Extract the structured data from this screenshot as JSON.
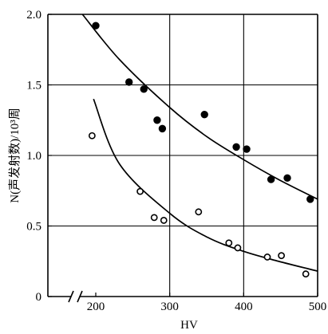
{
  "chart_data": {
    "type": "scatter",
    "title": "",
    "xlabel": "HV",
    "ylabel": "N(声发射数)/10³周",
    "xlim": [
      135,
      500
    ],
    "ylim": [
      0,
      2.0
    ],
    "axis_break": "x",
    "grid": true,
    "grid_x": [
      300,
      400
    ],
    "grid_y": [
      0.5,
      1.0,
      1.5
    ],
    "x_ticks": [
      {
        "value": 200,
        "label": "200"
      },
      {
        "value": 300,
        "label": "300"
      },
      {
        "value": 400,
        "label": "400"
      },
      {
        "value": 500,
        "label": "500"
      }
    ],
    "y_ticks": [
      {
        "value": 0,
        "label": "0"
      },
      {
        "value": 0.5,
        "label": "0.5"
      },
      {
        "value": 1.0,
        "label": "1.0"
      },
      {
        "value": 1.5,
        "label": "1.5"
      },
      {
        "value": 2.0,
        "label": "2.0"
      }
    ],
    "series": [
      {
        "marker": "filled-circle",
        "color": "#000000",
        "x": [
          200,
          245,
          265,
          283,
          290,
          347,
          390,
          404,
          437,
          459,
          490
        ],
        "y": [
          1.92,
          1.52,
          1.47,
          1.25,
          1.19,
          1.29,
          1.06,
          1.045,
          0.83,
          0.84,
          0.69
        ],
        "fit": {
          "x": [
            182,
            232,
            300,
            351,
            400,
            447,
            500
          ],
          "y": [
            2.0,
            1.68,
            1.34,
            1.13,
            0.97,
            0.83,
            0.69
          ]
        }
      },
      {
        "marker": "hollow-circle",
        "color": "#000000",
        "x": [
          195,
          260,
          279,
          292,
          339,
          380,
          392,
          432,
          451,
          484
        ],
        "y": [
          1.14,
          0.745,
          0.56,
          0.54,
          0.6,
          0.38,
          0.345,
          0.28,
          0.29,
          0.16
        ],
        "fit": {
          "x": [
            197,
            232,
            300,
            351,
            400,
            447,
            500
          ],
          "y": [
            1.4,
            0.94,
            0.59,
            0.42,
            0.32,
            0.25,
            0.18
          ]
        }
      }
    ]
  }
}
